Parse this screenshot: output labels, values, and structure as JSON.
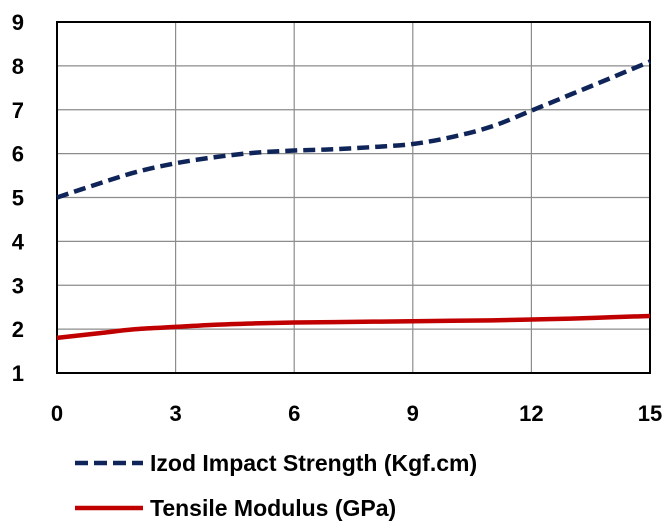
{
  "chart_data": {
    "type": "line",
    "x": [
      0,
      1,
      2,
      3,
      4,
      5,
      6,
      7,
      8,
      9,
      10,
      11,
      12,
      13,
      14,
      15
    ],
    "series": [
      {
        "name": "Izod Impact Strength (Kgf.cm)",
        "values": [
          5.0,
          5.3,
          5.58,
          5.78,
          5.92,
          6.02,
          6.07,
          6.1,
          6.15,
          6.22,
          6.38,
          6.62,
          6.98,
          7.35,
          7.72,
          8.1
        ],
        "color": "#0f2459",
        "style": "dashed"
      },
      {
        "name": "Tensile Modulus (GPa)",
        "values": [
          1.8,
          1.9,
          2.0,
          2.05,
          2.1,
          2.13,
          2.15,
          2.16,
          2.17,
          2.18,
          2.19,
          2.2,
          2.22,
          2.24,
          2.27,
          2.3
        ],
        "color": "#c00000",
        "style": "solid"
      }
    ],
    "x_ticks": [
      "0",
      "3",
      "6",
      "9",
      "12",
      "15"
    ],
    "y_ticks": [
      "1",
      "2",
      "3",
      "4",
      "5",
      "6",
      "7",
      "8",
      "9"
    ],
    "xlim": [
      0,
      15
    ],
    "ylim": [
      1,
      9
    ],
    "grid": true,
    "legend_position": "bottom"
  }
}
